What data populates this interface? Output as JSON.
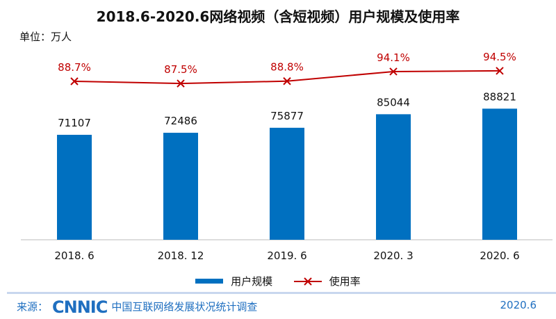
{
  "title": "2018.6-2020.6网络视频（含短视频）用户规模及使用率",
  "unit": "单位：万人",
  "chart_data": {
    "type": "bar",
    "categories": [
      "2018. 6",
      "2018. 12",
      "2019. 6",
      "2020. 3",
      "2020. 6"
    ],
    "series": [
      {
        "name": "用户规模",
        "type": "bar",
        "color": "#0070c0",
        "values": [
          71107,
          72486,
          75877,
          85044,
          88821
        ],
        "labels": [
          "71107",
          "72486",
          "75877",
          "85044",
          "88821"
        ]
      },
      {
        "name": "使用率",
        "type": "line",
        "color": "#c00000",
        "values": [
          88.7,
          87.5,
          88.8,
          94.1,
          94.5
        ],
        "labels": [
          "88.7%",
          "87.5%",
          "88.8%",
          "94.1%",
          "94.5%"
        ]
      }
    ],
    "legend": "bottom",
    "grid": false
  },
  "footer": {
    "source_label": "来源：",
    "logo": "CNNIC",
    "org": "中国互联网络发展状况统计调查",
    "date": "2020.6"
  }
}
